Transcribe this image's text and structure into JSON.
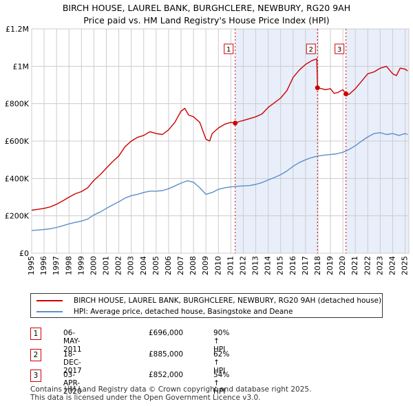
{
  "title_line1": "BIRCH HOUSE, LAUREL BANK, BURGHCLERE, NEWBURY, RG20 9AH",
  "title_line2": "Price paid vs. HM Land Registry's House Price Index (HPI)",
  "colors": {
    "property": "#cc0000",
    "hpi": "#5b8ec9",
    "shade": "#e8eefa",
    "marker": "#cc0000",
    "grid": "#cccccc"
  },
  "legend": {
    "property_label": "BIRCH HOUSE, LAUREL BANK, BURGHCLERE, NEWBURY, RG20 9AH (detached house)",
    "hpi_label": "HPI: Average price, detached house, Basingstoke and Deane"
  },
  "sales": [
    {
      "num": "1",
      "date": "06-MAY-2011",
      "price": "£696,000",
      "hpi": "90% ↑ HPI"
    },
    {
      "num": "2",
      "date": "18-DEC-2017",
      "price": "£885,000",
      "hpi": "62% ↑ HPI"
    },
    {
      "num": "3",
      "date": "03-APR-2020",
      "price": "£852,000",
      "hpi": "54% ↑ HPI"
    }
  ],
  "footer_line1": "Contains HM Land Registry data © Crown copyright and database right 2025.",
  "footer_line2": "This data is licensed under the Open Government Licence v3.0.",
  "chart_data": {
    "type": "line",
    "title": "BIRCH HOUSE, LAUREL BANK, BURGHCLERE, NEWBURY, RG20 9AH",
    "subtitle": "Price paid vs. HM Land Registry's House Price Index (HPI)",
    "xlabel": "",
    "ylabel": "",
    "xlim": [
      1995,
      2025.3
    ],
    "ylim": [
      0,
      1200000
    ],
    "y_ticks": [
      0,
      200000,
      400000,
      600000,
      800000,
      1000000,
      1200000
    ],
    "y_tick_labels": [
      "£0",
      "£200K",
      "£400K",
      "£600K",
      "£800K",
      "£1M",
      "£1.2M"
    ],
    "x_ticks": [
      1995,
      1996,
      1997,
      1998,
      1999,
      2000,
      2001,
      2002,
      2003,
      2004,
      2005,
      2006,
      2007,
      2008,
      2009,
      2010,
      2011,
      2012,
      2013,
      2014,
      2015,
      2016,
      2017,
      2018,
      2019,
      2020,
      2021,
      2022,
      2023,
      2024,
      2025
    ],
    "x_tick_labels": [
      "1995",
      "1996",
      "1997",
      "1998",
      "1999",
      "2000",
      "2001",
      "2002",
      "2003",
      "2004",
      "2005",
      "2006",
      "2007",
      "2008",
      "2009",
      "2010",
      "2011",
      "2012",
      "2013",
      "2014",
      "2015",
      "2016",
      "2017",
      "2018",
      "2019",
      "2020",
      "2021",
      "2022",
      "2023",
      "2024",
      "2025"
    ],
    "grid": true,
    "shaded_ranges": [
      [
        2011.35,
        2017.96
      ],
      [
        2020.25,
        2025.3
      ]
    ],
    "sale_markers": [
      {
        "label": "1",
        "x": 2011.35,
        "y": 696000
      },
      {
        "label": "2",
        "x": 2017.96,
        "y": 885000
      },
      {
        "label": "3",
        "x": 2020.25,
        "y": 852000
      }
    ],
    "series": [
      {
        "name": "BIRCH HOUSE, LAUREL BANK, BURGHCLERE, NEWBURY, RG20 9AH (detached house)",
        "x": [
          1995,
          1995.5,
          1996,
          1996.5,
          1997,
          1997.5,
          1998,
          1998.5,
          1999,
          1999.5,
          2000,
          2000.5,
          2001,
          2001.5,
          2002,
          2002.5,
          2003,
          2003.5,
          2004,
          2004.5,
          2005,
          2005.5,
          2006,
          2006.5,
          2007,
          2007.3,
          2007.6,
          2008,
          2008.5,
          2009,
          2009.3,
          2009.5,
          2010,
          2010.5,
          2011,
          2011.35,
          2011.7,
          2012,
          2012.5,
          2013,
          2013.5,
          2014,
          2014.5,
          2015,
          2015.5,
          2016,
          2016.5,
          2017,
          2017.5,
          2017.9,
          2017.96,
          2018.3,
          2018.6,
          2019,
          2019.3,
          2019.6,
          2020,
          2020.25,
          2020.5,
          2021,
          2021.5,
          2022,
          2022.5,
          2023,
          2023.5,
          2024,
          2024.3,
          2024.6,
          2025,
          2025.2
        ],
        "values": [
          230000,
          235000,
          240000,
          248000,
          262000,
          280000,
          300000,
          318000,
          330000,
          350000,
          390000,
          420000,
          455000,
          490000,
          520000,
          570000,
          600000,
          620000,
          630000,
          650000,
          640000,
          635000,
          660000,
          700000,
          760000,
          775000,
          740000,
          730000,
          700000,
          610000,
          600000,
          640000,
          670000,
          690000,
          700000,
          696000,
          705000,
          710000,
          720000,
          730000,
          745000,
          780000,
          805000,
          830000,
          870000,
          940000,
          980000,
          1010000,
          1030000,
          1040000,
          885000,
          880000,
          875000,
          880000,
          855000,
          860000,
          875000,
          852000,
          850000,
          880000,
          920000,
          960000,
          970000,
          990000,
          1000000,
          960000,
          950000,
          990000,
          985000,
          975000
        ]
      },
      {
        "name": "HPI: Average price, detached house, Basingstoke and Deane",
        "x": [
          1995,
          1995.5,
          1996,
          1996.5,
          1997,
          1997.5,
          1998,
          1998.5,
          1999,
          1999.5,
          2000,
          2000.5,
          2001,
          2001.5,
          2002,
          2002.5,
          2003,
          2003.5,
          2004,
          2004.5,
          2005,
          2005.5,
          2006,
          2006.5,
          2007,
          2007.5,
          2008,
          2008.5,
          2009,
          2009.5,
          2010,
          2010.5,
          2011,
          2011.5,
          2012,
          2012.5,
          2013,
          2013.5,
          2014,
          2014.5,
          2015,
          2015.5,
          2016,
          2016.5,
          2017,
          2017.5,
          2018,
          2018.5,
          2019,
          2019.5,
          2020,
          2020.5,
          2021,
          2021.5,
          2022,
          2022.5,
          2023,
          2023.5,
          2024,
          2024.5,
          2025,
          2025.2
        ],
        "values": [
          122000,
          124000,
          127000,
          131000,
          138000,
          147000,
          157000,
          165000,
          172000,
          183000,
          205000,
          220000,
          240000,
          258000,
          275000,
          295000,
          308000,
          315000,
          325000,
          332000,
          332000,
          335000,
          345000,
          360000,
          375000,
          388000,
          380000,
          350000,
          315000,
          325000,
          342000,
          350000,
          355000,
          358000,
          360000,
          362000,
          368000,
          378000,
          392000,
          405000,
          420000,
          440000,
          465000,
          485000,
          500000,
          512000,
          520000,
          525000,
          528000,
          532000,
          540000,
          555000,
          575000,
          600000,
          622000,
          640000,
          645000,
          635000,
          640000,
          630000,
          640000,
          635000
        ]
      }
    ]
  }
}
